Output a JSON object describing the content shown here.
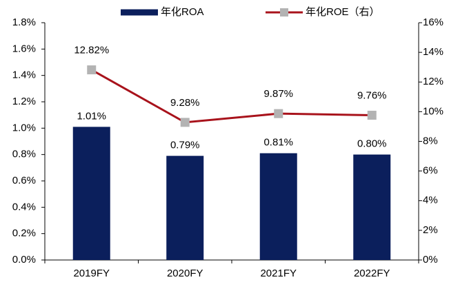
{
  "chart_data": {
    "type": "bar",
    "categories": [
      "2019FY",
      "2020FY",
      "2021FY",
      "2022FY"
    ],
    "series": [
      {
        "name": "年化ROA",
        "color": "#0b1f5c",
        "values": [
          1.01,
          0.79,
          0.81,
          0.8
        ],
        "value_labels": [
          "1.01%",
          "0.79%",
          "0.81%",
          "0.80%"
        ]
      },
      {
        "name": "年化ROE（右）",
        "type": "line",
        "axis": "y2",
        "color": "#a8121b",
        "marker_color": "#b3b3b3",
        "values": [
          12.82,
          9.28,
          9.87,
          9.76
        ],
        "value_labels": [
          "12.82%",
          "9.28%",
          "9.87%",
          "9.76%"
        ]
      }
    ],
    "ylim": [
      0,
      1.8
    ],
    "yticks": [
      {
        "value": 0,
        "label": "0.0%"
      },
      {
        "value": 0.2,
        "label": "0.2%"
      },
      {
        "value": 0.4,
        "label": "0.4%"
      },
      {
        "value": 0.6,
        "label": "0.6%"
      },
      {
        "value": 0.8,
        "label": "0.8%"
      },
      {
        "value": 1.0,
        "label": "1.0%"
      },
      {
        "value": 1.2,
        "label": "1.2%"
      },
      {
        "value": 1.4,
        "label": "1.4%"
      },
      {
        "value": 1.6,
        "label": "1.6%"
      },
      {
        "value": 1.8,
        "label": "1.8%"
      }
    ],
    "y2lim": [
      0,
      16
    ],
    "y2ticks": [
      {
        "value": 0,
        "label": "0%"
      },
      {
        "value": 2,
        "label": "2%"
      },
      {
        "value": 4,
        "label": "4%"
      },
      {
        "value": 6,
        "label": "6%"
      },
      {
        "value": 8,
        "label": "8%"
      },
      {
        "value": 10,
        "label": "10%"
      },
      {
        "value": 12,
        "label": "12%"
      },
      {
        "value": 14,
        "label": "14%"
      },
      {
        "value": 16,
        "label": "16%"
      }
    ],
    "legend": "top",
    "grid": false
  }
}
